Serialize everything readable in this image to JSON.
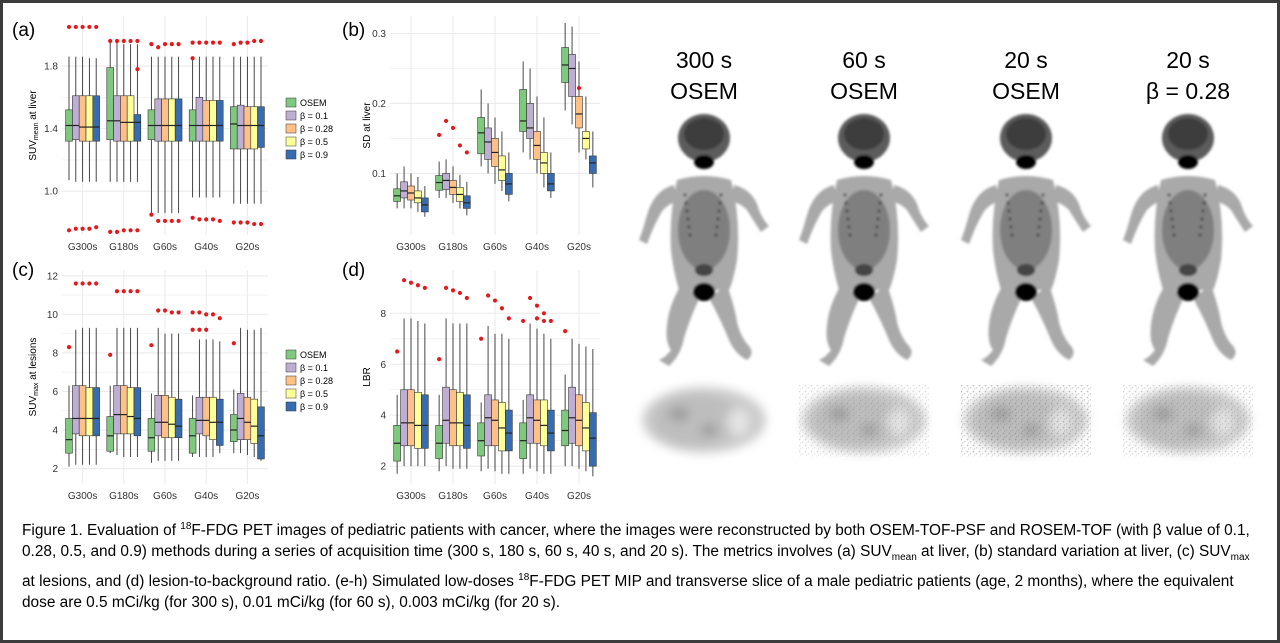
{
  "colors": {
    "OSEM": "#7fc97f",
    "b01": "#beaed4",
    "b028": "#fdc086",
    "b05": "#ffff99",
    "b09": "#386cb0",
    "outlier": "#e31a1c",
    "grid": "#ebebeb"
  },
  "legend_items": [
    "OSEM",
    "β = 0.1",
    "β = 0.28",
    "β = 0.5",
    "β = 0.9"
  ],
  "chart_data": [
    {
      "type": "box",
      "label": "(a)",
      "ylabel_main": "SUV",
      "ylabel_sub": "mean",
      "ylabel_rest": " at liver",
      "categories": [
        "G300s",
        "G180s",
        "G60s",
        "G40s",
        "G20s"
      ],
      "yticks": [
        "1.0",
        "1.4",
        "1.8"
      ],
      "ytick_values": [
        1.0,
        1.4,
        1.8
      ],
      "ylim": [
        0.72,
        2.12
      ],
      "boxes": [
        [
          [
            1.07,
            1.32,
            1.42,
            1.52,
            1.86
          ],
          [
            1.06,
            1.33,
            1.42,
            1.61,
            1.86
          ],
          [
            1.06,
            1.32,
            1.41,
            1.61,
            1.86
          ],
          [
            1.06,
            1.32,
            1.41,
            1.61,
            1.85
          ],
          [
            1.06,
            1.32,
            1.41,
            1.61,
            1.85
          ]
        ],
        [
          [
            1.06,
            1.33,
            1.45,
            1.79,
            1.95
          ],
          [
            1.06,
            1.32,
            1.45,
            1.61,
            1.95
          ],
          [
            1.06,
            1.32,
            1.44,
            1.61,
            1.94
          ],
          [
            1.06,
            1.32,
            1.44,
            1.61,
            1.94
          ],
          [
            1.06,
            1.32,
            1.44,
            1.49,
            1.94
          ]
        ],
        [
          [
            0.86,
            1.33,
            1.42,
            1.52,
            1.86
          ],
          [
            0.86,
            1.32,
            1.42,
            1.59,
            1.86
          ],
          [
            0.86,
            1.32,
            1.42,
            1.59,
            1.86
          ],
          [
            0.86,
            1.32,
            1.42,
            1.59,
            1.86
          ],
          [
            0.86,
            1.32,
            1.42,
            1.59,
            1.86
          ]
        ],
        [
          [
            0.96,
            1.32,
            1.42,
            1.52,
            1.86
          ],
          [
            0.96,
            1.32,
            1.42,
            1.6,
            1.86
          ],
          [
            0.96,
            1.32,
            1.42,
            1.58,
            1.86
          ],
          [
            0.96,
            1.32,
            1.42,
            1.58,
            1.86
          ],
          [
            0.96,
            1.32,
            1.42,
            1.58,
            1.86
          ]
        ],
        [
          [
            0.92,
            1.27,
            1.43,
            1.54,
            1.86
          ],
          [
            0.92,
            1.27,
            1.42,
            1.55,
            1.86
          ],
          [
            0.92,
            1.27,
            1.42,
            1.54,
            1.86
          ],
          [
            0.92,
            1.27,
            1.42,
            1.54,
            1.86
          ],
          [
            0.92,
            1.28,
            1.42,
            1.54,
            1.86
          ]
        ]
      ],
      "outliers": [
        [
          [
            2.05,
            0.75
          ],
          [
            2.05,
            0.76
          ],
          [
            2.05,
            0.76
          ],
          [
            2.05,
            0.76
          ],
          [
            2.05,
            0.77
          ]
        ],
        [
          [
            1.96,
            0.74
          ],
          [
            1.96,
            0.74
          ],
          [
            1.96,
            0.75
          ],
          [
            1.96,
            0.75
          ],
          [
            1.96,
            0.75,
            1.78
          ]
        ],
        [
          [
            1.94,
            0.85
          ],
          [
            1.92,
            0.81
          ],
          [
            1.94,
            0.81
          ],
          [
            1.94,
            0.81
          ],
          [
            1.94,
            0.81
          ]
        ],
        [
          [
            1.95,
            0.83,
            1.85
          ],
          [
            1.95,
            0.82
          ],
          [
            1.95,
            0.82
          ],
          [
            1.95,
            0.82
          ],
          [
            1.95,
            0.81
          ]
        ],
        [
          [
            1.94,
            0.8
          ],
          [
            1.95,
            0.8
          ],
          [
            1.95,
            0.8
          ],
          [
            1.96,
            0.79
          ],
          [
            1.96,
            0.79
          ]
        ]
      ]
    },
    {
      "type": "box",
      "label": "(b)",
      "ylabel_main": "SD at liver",
      "ylabel_sub": "",
      "ylabel_rest": "",
      "categories": [
        "G300s",
        "G180s",
        "G60s",
        "G40s",
        "G20s"
      ],
      "yticks": [
        "0.1",
        "0.2",
        "0.3"
      ],
      "ytick_values": [
        0.1,
        0.2,
        0.3
      ],
      "ylim": [
        0.012,
        0.325
      ],
      "boxes": [
        [
          [
            0.05,
            0.06,
            0.068,
            0.078,
            0.1
          ],
          [
            0.05,
            0.065,
            0.075,
            0.088,
            0.11
          ],
          [
            0.05,
            0.062,
            0.072,
            0.082,
            0.1
          ],
          [
            0.045,
            0.058,
            0.065,
            0.075,
            0.095
          ],
          [
            0.038,
            0.045,
            0.055,
            0.065,
            0.082
          ]
        ],
        [
          [
            0.065,
            0.076,
            0.087,
            0.097,
            0.117
          ],
          [
            0.065,
            0.077,
            0.09,
            0.1,
            0.12
          ],
          [
            0.058,
            0.07,
            0.08,
            0.09,
            0.11
          ],
          [
            0.05,
            0.06,
            0.07,
            0.08,
            0.098
          ],
          [
            0.04,
            0.05,
            0.058,
            0.068,
            0.088
          ]
        ],
        [
          [
            0.11,
            0.128,
            0.158,
            0.18,
            0.22
          ],
          [
            0.1,
            0.12,
            0.145,
            0.165,
            0.2
          ],
          [
            0.085,
            0.11,
            0.13,
            0.15,
            0.18
          ],
          [
            0.075,
            0.09,
            0.105,
            0.125,
            0.16
          ],
          [
            0.06,
            0.07,
            0.085,
            0.1,
            0.13
          ]
        ],
        [
          [
            0.13,
            0.16,
            0.175,
            0.22,
            0.26
          ],
          [
            0.12,
            0.15,
            0.165,
            0.2,
            0.25
          ],
          [
            0.1,
            0.12,
            0.14,
            0.16,
            0.21
          ],
          [
            0.08,
            0.1,
            0.115,
            0.13,
            0.18
          ],
          [
            0.065,
            0.075,
            0.085,
            0.1,
            0.13
          ]
        ],
        [
          [
            0.19,
            0.23,
            0.255,
            0.28,
            0.315
          ],
          [
            0.17,
            0.21,
            0.25,
            0.27,
            0.31
          ],
          [
            0.13,
            0.165,
            0.185,
            0.21,
            0.26
          ],
          [
            0.12,
            0.135,
            0.15,
            0.16,
            0.21
          ],
          [
            0.08,
            0.1,
            0.115,
            0.125,
            0.16
          ]
        ]
      ],
      "outliers": [
        [
          [],
          [],
          [],
          [],
          []
        ],
        [
          [
            0.155
          ],
          [
            0.175
          ],
          [
            0.165
          ],
          [
            0.14
          ],
          [
            0.13
          ]
        ],
        [
          [],
          [],
          [],
          [],
          []
        ],
        [
          [],
          [],
          [],
          [],
          []
        ],
        [
          [],
          [],
          [
            0.222
          ],
          [],
          []
        ]
      ]
    },
    {
      "type": "box",
      "label": "(c)",
      "ylabel_main": "SUV",
      "ylabel_sub": "max",
      "ylabel_rest": " at lesions",
      "categories": [
        "G300s",
        "G180s",
        "G60s",
        "G40s",
        "G20s"
      ],
      "yticks": [
        "2",
        "4",
        "6",
        "8",
        "10",
        "12"
      ],
      "ytick_values": [
        2,
        4,
        6,
        8,
        10,
        12
      ],
      "ylim": [
        1.2,
        12.3
      ],
      "boxes": [
        [
          [
            2.1,
            2.8,
            3.5,
            4.6,
            6.3
          ],
          [
            2.2,
            3.8,
            4.6,
            6.3,
            9.2
          ],
          [
            2.2,
            3.7,
            4.6,
            6.3,
            9.3
          ],
          [
            2.2,
            3.7,
            4.6,
            6.2,
            9.3
          ],
          [
            2.2,
            3.7,
            4.6,
            6.2,
            9.3
          ]
        ],
        [
          [
            2.8,
            2.9,
            3.7,
            4.7,
            6.3
          ],
          [
            2.7,
            3.8,
            4.8,
            6.3,
            9.3
          ],
          [
            2.6,
            3.8,
            4.8,
            6.3,
            9.3
          ],
          [
            2.6,
            3.8,
            4.7,
            6.2,
            9.3
          ],
          [
            2.6,
            3.7,
            4.6,
            6.2,
            9.3
          ]
        ],
        [
          [
            2.3,
            2.9,
            3.6,
            4.6,
            5.9
          ],
          [
            2.4,
            3.7,
            4.4,
            5.8,
            9.3
          ],
          [
            2.4,
            3.6,
            4.4,
            5.8,
            9.0
          ],
          [
            2.4,
            3.6,
            4.3,
            5.7,
            9.0
          ],
          [
            2.4,
            3.6,
            4.2,
            5.6,
            9.0
          ]
        ],
        [
          [
            2.6,
            2.8,
            3.7,
            4.6,
            5.8
          ],
          [
            2.6,
            3.8,
            4.5,
            5.7,
            8.7
          ],
          [
            2.6,
            3.7,
            4.5,
            5.7,
            8.7
          ],
          [
            2.6,
            3.5,
            4.4,
            5.7,
            8.7
          ],
          [
            2.8,
            3.2,
            4.4,
            5.6,
            8.6
          ]
        ],
        [
          [
            2.8,
            3.4,
            4.0,
            4.8,
            6.1
          ],
          [
            2.8,
            3.5,
            4.6,
            5.9,
            9.3
          ],
          [
            2.7,
            3.5,
            4.4,
            5.7,
            9.2
          ],
          [
            2.6,
            3.3,
            4.2,
            5.6,
            9.2
          ],
          [
            2.4,
            2.5,
            3.7,
            5.2,
            9.3
          ]
        ]
      ],
      "outliers": [
        [
          [
            8.3
          ],
          [
            11.6
          ],
          [
            11.6
          ],
          [
            11.6
          ],
          [
            11.6
          ]
        ],
        [
          [
            7.9
          ],
          [
            11.2
          ],
          [
            11.2
          ],
          [
            11.2
          ],
          [
            11.2
          ]
        ],
        [
          [
            8.4
          ],
          [
            10.2
          ],
          [
            10.2
          ],
          [
            10.1
          ],
          [
            10.1
          ]
        ],
        [
          [
            9.2,
            10.1
          ],
          [
            9.2,
            10.1
          ],
          [
            9.2,
            10.0
          ],
          [
            10.0
          ],
          [
            9.8
          ]
        ],
        [
          [
            8.5
          ],
          [],
          [],
          [],
          []
        ]
      ]
    },
    {
      "type": "box",
      "label": "(d)",
      "ylabel_main": "LBR",
      "ylabel_sub": "",
      "ylabel_rest": "",
      "categories": [
        "G300s",
        "G180s",
        "G60s",
        "G40s",
        "G20s"
      ],
      "yticks": [
        "2",
        "4",
        "6",
        "8"
      ],
      "ytick_values": [
        2,
        4,
        6,
        8
      ],
      "ylim": [
        1.3,
        9.7
      ],
      "boxes": [
        [
          [
            1.7,
            2.2,
            2.9,
            3.6,
            4.8
          ],
          [
            2.0,
            2.8,
            3.7,
            5.0,
            7.8
          ],
          [
            2.0,
            2.8,
            3.7,
            5.0,
            7.8
          ],
          [
            2.0,
            2.7,
            3.6,
            4.9,
            7.7
          ],
          [
            2.0,
            2.7,
            3.6,
            4.8,
            7.6
          ]
        ],
        [
          [
            1.8,
            2.3,
            2.9,
            3.6,
            4.8
          ],
          [
            2.0,
            2.9,
            3.8,
            5.1,
            7.8
          ],
          [
            1.9,
            2.8,
            3.7,
            5.0,
            7.6
          ],
          [
            1.9,
            2.8,
            3.7,
            4.9,
            7.6
          ],
          [
            1.9,
            2.7,
            3.6,
            4.8,
            7.6
          ]
        ],
        [
          [
            1.8,
            2.4,
            3.0,
            3.7,
            4.5
          ],
          [
            1.9,
            2.8,
            3.9,
            4.8,
            7.5
          ],
          [
            1.8,
            2.8,
            3.8,
            4.6,
            7.2
          ],
          [
            1.7,
            2.6,
            3.5,
            4.5,
            7.2
          ],
          [
            1.7,
            2.6,
            3.3,
            4.2,
            7.0
          ]
        ],
        [
          [
            1.7,
            2.3,
            3.0,
            3.7,
            4.6
          ],
          [
            1.9,
            2.9,
            3.9,
            4.8,
            7.6
          ],
          [
            1.8,
            2.9,
            3.8,
            4.6,
            7.4
          ],
          [
            1.7,
            2.8,
            3.6,
            4.6,
            7.2
          ],
          [
            1.7,
            2.6,
            3.3,
            4.2,
            7.0
          ]
        ],
        [
          [
            2.0,
            2.8,
            3.4,
            4.2,
            5.6
          ],
          [
            2.0,
            2.9,
            3.9,
            5.1,
            7.0
          ],
          [
            1.9,
            2.8,
            3.8,
            4.8,
            6.8
          ],
          [
            1.8,
            2.6,
            3.5,
            4.5,
            6.7
          ],
          [
            1.6,
            2.0,
            3.1,
            4.1,
            6.6
          ]
        ]
      ],
      "outliers": [
        [
          [
            6.5
          ],
          [
            9.3
          ],
          [
            9.2
          ],
          [
            9.1
          ],
          [
            9.0
          ]
        ],
        [
          [
            6.2
          ],
          [
            9.0
          ],
          [
            8.9
          ],
          [
            8.8
          ],
          [
            8.6
          ]
        ],
        [
          [
            7.0
          ],
          [
            8.7
          ],
          [
            8.5
          ],
          [
            8.2
          ],
          [
            7.8
          ]
        ],
        [
          [
            7.7
          ],
          [
            8.6
          ],
          [
            8.3,
            7.8
          ],
          [
            8.0,
            7.7
          ],
          [
            7.7
          ]
        ],
        [
          [
            7.3
          ],
          [],
          [],
          [],
          []
        ]
      ]
    }
  ],
  "image_panel": {
    "columns": [
      {
        "line1": "300 s",
        "line2": "OSEM"
      },
      {
        "line1": "60 s",
        "line2": "OSEM"
      },
      {
        "line1": "20 s",
        "line2": "OSEM"
      },
      {
        "line1": "20 s",
        "line2": "β = 0.28"
      }
    ]
  },
  "caption": {
    "p1": "Figure 1. Evaluation of ",
    "sup1": "18",
    "p2": "F-FDG PET images of pediatric patients with cancer, where the images were reconstructed by both OSEM-TOF-PSF and ROSEM-TOF (with β value of 0.1, 0.28, 0.5, and 0.9) methods during a series of acquisition time (300 s, 180 s, 60 s, 40 s, and 20 s). The metrics involves (a) SUV",
    "sub1": "mean",
    "p3": " at liver, (b) standard variation at liver, (c) SUV",
    "sub2": "max",
    "p4": " at lesions, and (d) lesion-to-background ratio. (e-h) Simulated low-doses ",
    "sup2": "18",
    "p5": "F-FDG PET MIP and transverse slice of a male pediatric patients (age, 2 months), where the equivalent dose are 0.5 mCi/kg (for 300 s), 0.01 mCi/kg (for 60 s), 0.003 mCi/kg (for 20 s)."
  }
}
